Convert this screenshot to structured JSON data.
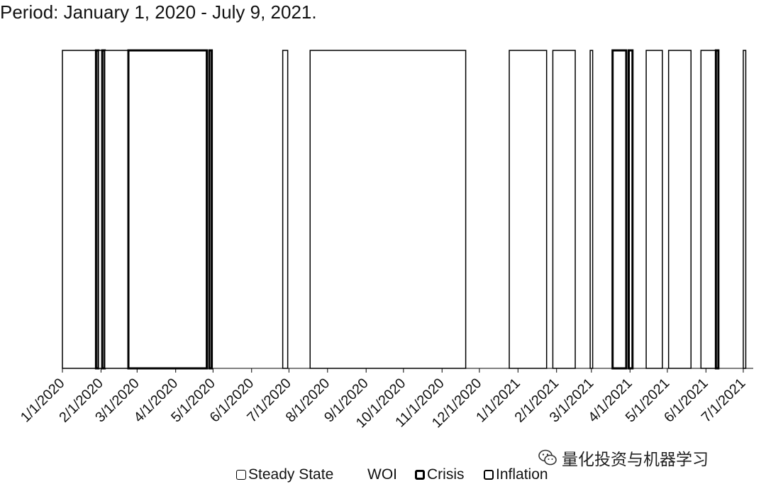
{
  "title": "Period: January 1, 2020 - July 9, 2021.",
  "watermark": {
    "text": "量化投资与机器学习",
    "icon": "wechat-icon"
  },
  "chart_data": {
    "type": "area",
    "x_range": [
      "2020-01-01",
      "2021-07-09"
    ],
    "ylim": [
      0,
      1
    ],
    "xticks": [
      "1/1/2020",
      "2/1/2020",
      "3/1/2020",
      "4/1/2020",
      "5/1/2020",
      "6/1/2020",
      "7/1/2020",
      "8/1/2020",
      "9/1/2020",
      "10/1/2020",
      "11/1/2020",
      "12/1/2020",
      "1/1/2021",
      "2/1/2021",
      "3/1/2021",
      "4/1/2021",
      "5/1/2021",
      "6/1/2021",
      "7/1/2021"
    ],
    "xtick_dates": [
      "2020-01-01",
      "2020-02-01",
      "2020-03-01",
      "2020-04-01",
      "2020-05-01",
      "2020-06-01",
      "2020-07-01",
      "2020-08-01",
      "2020-09-01",
      "2020-10-01",
      "2020-11-01",
      "2020-12-01",
      "2021-01-01",
      "2021-02-01",
      "2021-03-01",
      "2021-04-01",
      "2021-05-01",
      "2021-06-01",
      "2021-07-01"
    ],
    "grid": false,
    "legend_position": "bottom",
    "legend": [
      {
        "label": "Steady State",
        "key": "steady"
      },
      {
        "label": "WOI",
        "key": "woi"
      },
      {
        "label": "Crisis",
        "key": "crisis"
      },
      {
        "label": "Inflation",
        "key": "inflation"
      }
    ],
    "regimes": [
      {
        "regime": "steady",
        "start": "2020-01-01",
        "end": "2020-01-28"
      },
      {
        "regime": "inflation",
        "start": "2020-01-28",
        "end": "2020-01-30"
      },
      {
        "regime": "steady",
        "start": "2020-01-30",
        "end": "2020-02-02"
      },
      {
        "regime": "inflation",
        "start": "2020-02-02",
        "end": "2020-02-04"
      },
      {
        "regime": "steady",
        "start": "2020-02-04",
        "end": "2020-02-23"
      },
      {
        "regime": "crisis",
        "start": "2020-02-23",
        "end": "2020-04-26"
      },
      {
        "regime": "inflation",
        "start": "2020-04-28",
        "end": "2020-04-30"
      },
      {
        "regime": "steady",
        "start": "2020-06-26",
        "end": "2020-06-30"
      },
      {
        "regime": "steady",
        "start": "2020-07-18",
        "end": "2020-11-20"
      },
      {
        "regime": "steady",
        "start": "2020-12-25",
        "end": "2021-01-24"
      },
      {
        "regime": "steady",
        "start": "2021-01-29",
        "end": "2021-02-16"
      },
      {
        "regime": "steady",
        "start": "2021-02-28",
        "end": "2021-03-02"
      },
      {
        "regime": "crisis",
        "start": "2021-03-18",
        "end": "2021-03-29"
      },
      {
        "regime": "inflation",
        "start": "2021-03-31",
        "end": "2021-04-03"
      },
      {
        "regime": "steady",
        "start": "2021-04-14",
        "end": "2021-04-27"
      },
      {
        "regime": "steady",
        "start": "2021-05-02",
        "end": "2021-05-20"
      },
      {
        "regime": "steady",
        "start": "2021-05-28",
        "end": "2021-06-09"
      },
      {
        "regime": "inflation",
        "start": "2021-06-09",
        "end": "2021-06-11"
      },
      {
        "regime": "steady",
        "start": "2021-07-01",
        "end": "2021-07-03"
      }
    ]
  }
}
